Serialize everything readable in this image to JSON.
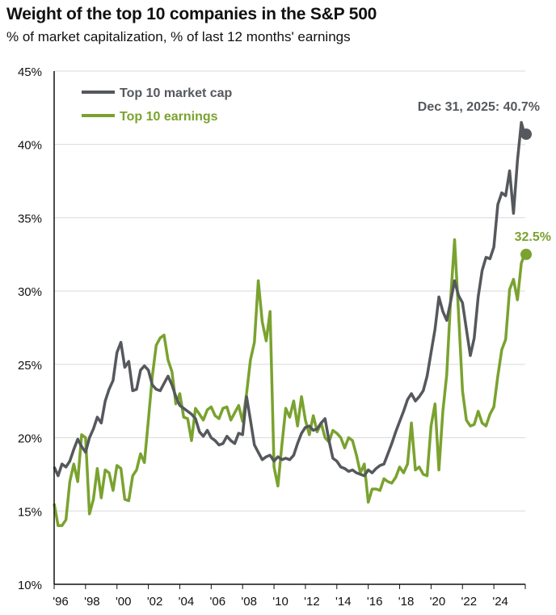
{
  "title": "Weight of the top 10 companies in the S&P 500",
  "subtitle": "% of market capitalization, % of last 12 months' earnings",
  "colors": {
    "market_cap": "#55585c",
    "earnings": "#7aa22f",
    "grid": "#d9d9d9",
    "axis": "#111111"
  },
  "chart_data": {
    "type": "line",
    "title": "Weight of the top 10 companies in the S&P 500",
    "subtitle": "% of market capitalization, % of last 12 months' earnings",
    "xlabel": "",
    "ylabel": "",
    "xlim": [
      1996,
      2026
    ],
    "ylim": [
      10,
      45
    ],
    "grid": true,
    "legend_position": "top-left",
    "y_ticks": [
      10,
      15,
      20,
      25,
      30,
      35,
      40,
      45
    ],
    "y_tick_labels": [
      "10%",
      "15%",
      "20%",
      "25%",
      "30%",
      "35%",
      "40%",
      "45%"
    ],
    "x_ticks": [
      1996,
      1998,
      2000,
      2002,
      2004,
      2006,
      2008,
      2010,
      2012,
      2014,
      2016,
      2018,
      2020,
      2022,
      2024
    ],
    "x_tick_labels": [
      "'96",
      "'98",
      "'00",
      "'02",
      "'04",
      "'06",
      "'08",
      "'10",
      "'12",
      "'14",
      "'16",
      "'18",
      "'20",
      "'22",
      "'24"
    ],
    "x": [
      1996.0,
      1996.25,
      1996.5,
      1996.75,
      1997.0,
      1997.25,
      1997.5,
      1997.75,
      1998.0,
      1998.25,
      1998.5,
      1998.75,
      1999.0,
      1999.25,
      1999.5,
      1999.75,
      2000.0,
      2000.25,
      2000.5,
      2000.75,
      2001.0,
      2001.25,
      2001.5,
      2001.75,
      2002.0,
      2002.25,
      2002.5,
      2002.75,
      2003.0,
      2003.25,
      2003.5,
      2003.75,
      2004.0,
      2004.25,
      2004.5,
      2004.75,
      2005.0,
      2005.25,
      2005.5,
      2005.75,
      2006.0,
      2006.25,
      2006.5,
      2006.75,
      2007.0,
      2007.25,
      2007.5,
      2007.75,
      2008.0,
      2008.25,
      2008.5,
      2008.75,
      2009.0,
      2009.25,
      2009.5,
      2009.75,
      2010.0,
      2010.25,
      2010.5,
      2010.75,
      2011.0,
      2011.25,
      2011.5,
      2011.75,
      2012.0,
      2012.25,
      2012.5,
      2012.75,
      2013.0,
      2013.25,
      2013.5,
      2013.75,
      2014.0,
      2014.25,
      2014.5,
      2014.75,
      2015.0,
      2015.25,
      2015.5,
      2015.75,
      2016.0,
      2016.25,
      2016.5,
      2016.75,
      2017.0,
      2017.25,
      2017.5,
      2017.75,
      2018.0,
      2018.25,
      2018.5,
      2018.75,
      2019.0,
      2019.25,
      2019.5,
      2019.75,
      2020.0,
      2020.25,
      2020.5,
      2020.75,
      2021.0,
      2021.25,
      2021.5,
      2021.75,
      2022.0,
      2022.25,
      2022.5,
      2022.75,
      2023.0,
      2023.25,
      2023.5,
      2023.75,
      2024.0,
      2024.25,
      2024.5,
      2024.75,
      2025.0,
      2025.25,
      2025.5,
      2025.75,
      2025.95
    ],
    "series": [
      {
        "name": "Top 10 market cap",
        "color": "#55585c",
        "values": [
          18.0,
          17.4,
          18.2,
          18.0,
          18.4,
          19.2,
          19.9,
          19.4,
          19.0,
          20.0,
          20.6,
          21.4,
          21.0,
          22.5,
          23.3,
          23.9,
          25.8,
          26.5,
          24.8,
          25.2,
          23.2,
          23.3,
          24.6,
          24.9,
          24.6,
          23.6,
          23.3,
          23.2,
          23.7,
          24.2,
          23.6,
          22.8,
          22.2,
          22.0,
          21.8,
          21.6,
          21.3,
          20.4,
          20.1,
          20.5,
          20.0,
          19.8,
          19.5,
          19.6,
          20.1,
          19.8,
          19.6,
          20.3,
          20.2,
          22.8,
          21.2,
          19.5,
          19.0,
          18.5,
          18.7,
          18.8,
          18.4,
          18.7,
          18.5,
          18.6,
          18.5,
          18.8,
          19.6,
          20.3,
          20.7,
          20.8,
          20.5,
          20.6,
          21.0,
          21.3,
          19.8,
          18.6,
          18.4,
          18.0,
          17.9,
          17.7,
          17.8,
          17.6,
          17.5,
          17.4,
          17.8,
          17.6,
          17.9,
          18.1,
          18.2,
          18.9,
          19.6,
          20.4,
          21.1,
          21.8,
          22.6,
          23.0,
          22.5,
          22.8,
          23.2,
          24.2,
          25.8,
          27.4,
          29.6,
          28.6,
          28.0,
          29.3,
          30.7,
          29.7,
          29.2,
          27.4,
          25.6,
          26.8,
          29.6,
          31.4,
          32.3,
          32.2,
          33.0,
          35.9,
          36.7,
          36.5,
          38.2,
          35.3,
          38.9,
          41.5,
          40.7
        ]
      },
      {
        "name": "Top 10 earnings",
        "color": "#7aa22f",
        "values": [
          15.5,
          14.0,
          14.0,
          14.4,
          17.0,
          18.2,
          17.0,
          20.2,
          20.0,
          14.8,
          15.8,
          17.9,
          15.9,
          17.8,
          17.6,
          16.4,
          18.1,
          17.9,
          15.8,
          15.7,
          17.4,
          17.8,
          18.9,
          18.3,
          21.2,
          24.2,
          26.3,
          26.8,
          27.0,
          25.3,
          24.5,
          22.3,
          23.0,
          21.4,
          21.3,
          19.8,
          22.0,
          21.6,
          21.2,
          21.9,
          22.1,
          21.5,
          21.3,
          22.0,
          22.1,
          21.2,
          21.7,
          22.2,
          21.1,
          23.0,
          25.3,
          26.5,
          30.7,
          27.9,
          26.6,
          28.6,
          18.0,
          16.7,
          19.5,
          22.0,
          21.4,
          22.5,
          20.8,
          22.8,
          21.2,
          20.2,
          21.5,
          20.4,
          21.0,
          20.0,
          19.7,
          20.5,
          20.3,
          20.0,
          19.3,
          20.0,
          19.8,
          18.8,
          17.6,
          18.2,
          15.6,
          16.5,
          16.5,
          16.4,
          17.2,
          17.0,
          16.9,
          17.3,
          18.0,
          17.6,
          18.2,
          21.0,
          17.8,
          18.0,
          17.5,
          17.4,
          20.8,
          22.3,
          17.8,
          21.8,
          24.3,
          29.5,
          33.5,
          28.5,
          23.2,
          21.2,
          20.8,
          20.9,
          21.8,
          21.0,
          20.8,
          21.6,
          22.1,
          24.2,
          26.0,
          26.7,
          30.1,
          30.8,
          29.4,
          31.9,
          32.5
        ]
      }
    ],
    "annotations": [
      {
        "text": "Dec 31, 2025: 40.7%",
        "series": "Top 10 market cap",
        "x": 2025.95,
        "y": 40.7
      },
      {
        "text": "32.5%",
        "series": "Top 10 earnings",
        "x": 2025.95,
        "y": 32.5
      }
    ]
  }
}
